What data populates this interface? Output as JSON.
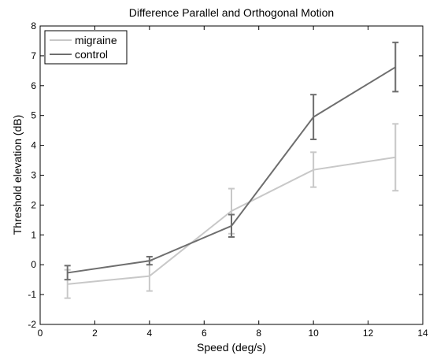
{
  "chart_data": {
    "type": "line",
    "title": "Difference Parallel and Orthogonal Motion",
    "xlabel": "Speed (deg/s)",
    "ylabel": "Threshold elevation (dB)",
    "xlim": [
      0,
      14
    ],
    "ylim": [
      -2,
      8
    ],
    "xticks": [
      0,
      2,
      4,
      6,
      8,
      10,
      12,
      14
    ],
    "yticks": [
      -2,
      -1,
      0,
      1,
      2,
      3,
      4,
      5,
      6,
      7,
      8
    ],
    "grid": false,
    "legend_position": "top-left",
    "x": [
      1,
      4,
      7,
      10,
      13
    ],
    "series": [
      {
        "name": "migraine",
        "color": "#c8c8c8",
        "values": [
          -0.65,
          -0.38,
          1.8,
          3.18,
          3.6
        ],
        "err_low": [
          -1.12,
          -0.88,
          1.04,
          2.6,
          2.48
        ],
        "err_high": [
          -0.17,
          0.13,
          2.55,
          3.77,
          4.72
        ]
      },
      {
        "name": "control",
        "color": "#6e6e6e",
        "values": [
          -0.27,
          0.13,
          1.3,
          4.95,
          6.62
        ],
        "err_low": [
          -0.5,
          0.0,
          0.93,
          4.2,
          5.8
        ],
        "err_high": [
          -0.03,
          0.27,
          1.68,
          5.7,
          7.45
        ]
      }
    ]
  }
}
